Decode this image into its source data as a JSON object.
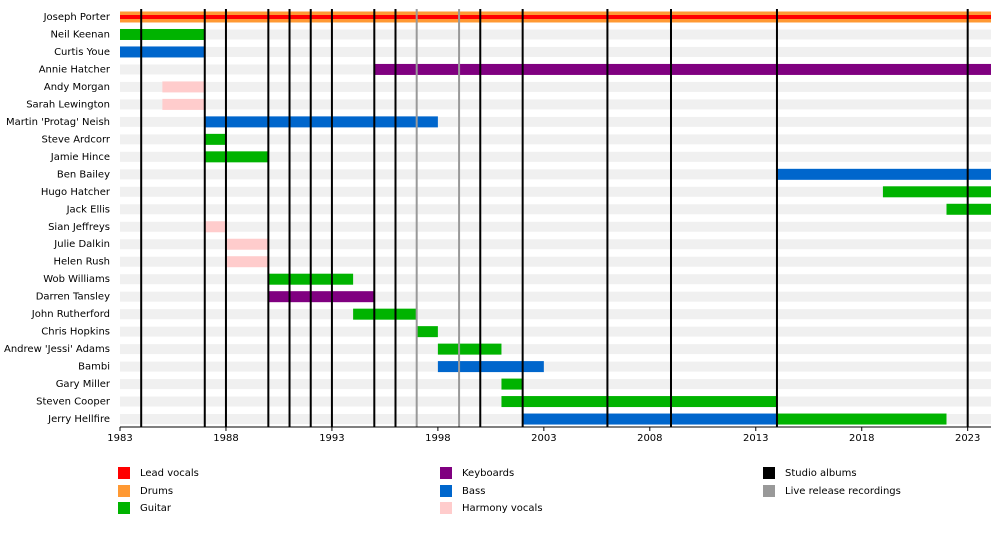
{
  "chart_data": {
    "type": "timeline",
    "categories": [
      "Joseph Porter",
      "Neil Keenan",
      "Curtis Youe",
      "Annie Hatcher",
      "Andy Morgan",
      "Sarah Lewington",
      "Martin 'Protag' Neish",
      "Steve Ardcorr",
      "Jamie Hince",
      "Ben Bailey",
      "Hugo Hatcher",
      "Jack Ellis",
      "Sian Jeffreys",
      "Julie Dalkin",
      "Helen Rush",
      "Wob Williams",
      "Darren Tansley",
      "John Rutherford",
      "Chris Hopkins",
      "Andrew 'Jessi' Adams",
      "Bambi",
      "Gary Miller",
      "Steven Cooper",
      "Jerry Hellfire"
    ],
    "xlim": [
      1983,
      2024.1
    ],
    "xticks": [
      1983,
      1988,
      1993,
      1998,
      2003,
      2008,
      2013,
      2018,
      2023
    ],
    "series": [
      {
        "name": "Lead vocals",
        "color": "#ff0000",
        "start": [
          1983,
          null,
          null,
          null,
          null,
          null,
          null,
          null,
          null,
          null,
          null,
          null,
          null,
          null,
          null,
          null,
          null,
          null,
          null,
          null,
          null,
          null,
          null,
          null
        ],
        "end": [
          2024.1,
          null,
          null,
          null,
          null,
          null,
          null,
          null,
          null,
          null,
          null,
          null,
          null,
          null,
          null,
          null,
          null,
          null,
          null,
          null,
          null,
          null,
          null,
          null
        ]
      },
      {
        "name": "Drums",
        "color": "#ff9933",
        "start": [
          1983,
          null,
          null,
          null,
          null,
          null,
          null,
          null,
          null,
          null,
          null,
          null,
          null,
          null,
          null,
          null,
          null,
          null,
          null,
          null,
          null,
          null,
          null,
          null
        ],
        "end": [
          2024.1,
          null,
          null,
          null,
          null,
          null,
          null,
          null,
          null,
          null,
          null,
          null,
          null,
          null,
          null,
          null,
          null,
          null,
          null,
          null,
          null,
          null,
          null,
          null
        ]
      },
      {
        "name": "Guitar",
        "color": "#00b300",
        "start": [
          null,
          1983,
          null,
          null,
          null,
          null,
          null,
          1987,
          1987,
          null,
          2019,
          2022,
          null,
          null,
          null,
          1990,
          null,
          1994,
          1997,
          1998,
          null,
          2001,
          2001,
          2014
        ],
        "end": [
          null,
          1987,
          null,
          null,
          null,
          null,
          null,
          1988,
          1990,
          null,
          2024.1,
          2024.1,
          null,
          null,
          null,
          1994,
          null,
          1997,
          1998,
          2001,
          null,
          2002,
          2014,
          2022
        ]
      },
      {
        "name": "Keyboards",
        "color": "#800080",
        "start": [
          null,
          null,
          null,
          1995,
          null,
          null,
          null,
          null,
          null,
          null,
          null,
          null,
          null,
          null,
          null,
          null,
          1990,
          null,
          null,
          null,
          null,
          null,
          null,
          null
        ],
        "end": [
          null,
          null,
          null,
          2024.1,
          null,
          null,
          null,
          null,
          null,
          null,
          null,
          null,
          null,
          null,
          null,
          null,
          1995,
          null,
          null,
          null,
          null,
          null,
          null,
          null
        ]
      },
      {
        "name": "Bass",
        "color": "#0066cc",
        "start": [
          null,
          null,
          1983,
          null,
          null,
          null,
          1987,
          null,
          null,
          2014,
          null,
          null,
          null,
          null,
          null,
          null,
          null,
          null,
          null,
          null,
          1998,
          null,
          null,
          2002
        ],
        "end": [
          null,
          null,
          1987,
          null,
          null,
          null,
          1998,
          null,
          null,
          2024.1,
          null,
          null,
          null,
          null,
          null,
          null,
          null,
          null,
          null,
          null,
          2003,
          null,
          null,
          2014
        ]
      },
      {
        "name": "Harmony vocals",
        "color": "#ffcccc",
        "start": [
          null,
          null,
          null,
          null,
          1985,
          1985,
          null,
          null,
          null,
          null,
          null,
          null,
          1987,
          1988,
          1988,
          null,
          null,
          null,
          null,
          null,
          null,
          null,
          null,
          null
        ],
        "end": [
          null,
          null,
          null,
          null,
          1987,
          1987,
          null,
          null,
          null,
          null,
          null,
          null,
          1988,
          1990,
          1990,
          null,
          null,
          null,
          null,
          null,
          null,
          null,
          null,
          null
        ]
      }
    ],
    "events": [
      {
        "name": "Studio albums",
        "color": "#000000",
        "x": [
          1984,
          1987,
          1988,
          1990,
          1991,
          1992,
          1993,
          1995,
          1996,
          2000,
          2002,
          2006,
          2009,
          2014,
          2023
        ]
      },
      {
        "name": "Live release recordings",
        "color": "#999999",
        "x": [
          1997,
          1999
        ]
      }
    ]
  }
}
